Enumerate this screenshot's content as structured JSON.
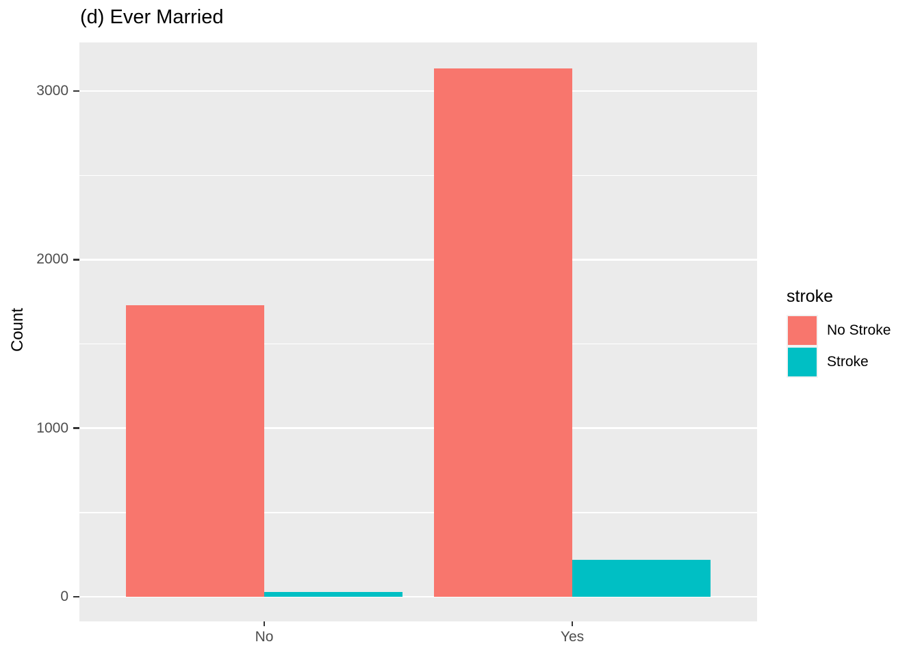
{
  "title": "(d) Ever Married",
  "chart_data": {
    "type": "bar",
    "subtype": "grouped-dodged",
    "title": "(d) Ever Married",
    "xlabel": "",
    "ylabel": "Count",
    "categories": [
      "No",
      "Yes"
    ],
    "series": [
      {
        "name": "No Stroke",
        "color": "#F8766D",
        "values": [
          1728,
          3133
        ]
      },
      {
        "name": "Stroke",
        "color": "#00BFC4",
        "values": [
          29,
          220
        ]
      }
    ],
    "ylim": [
      0,
      3300
    ],
    "yticks": [
      0,
      1000,
      2000,
      3000
    ],
    "ytick_labels": [
      "0",
      "1000",
      "2000",
      "3000"
    ],
    "yticks_minor": [
      500,
      1500,
      2500
    ],
    "grid": true,
    "legend_title": "stroke",
    "legend_position": "right",
    "panel_bg": "#EBEBEB",
    "grid_color": "#FFFFFF",
    "tick_label_color": "#4D4D4D",
    "tick_mark_color": "#333333"
  },
  "legend": {
    "title": "stroke",
    "items": [
      {
        "label": "No Stroke",
        "color": "#F8766D"
      },
      {
        "label": "Stroke",
        "color": "#00BFC4"
      }
    ]
  }
}
